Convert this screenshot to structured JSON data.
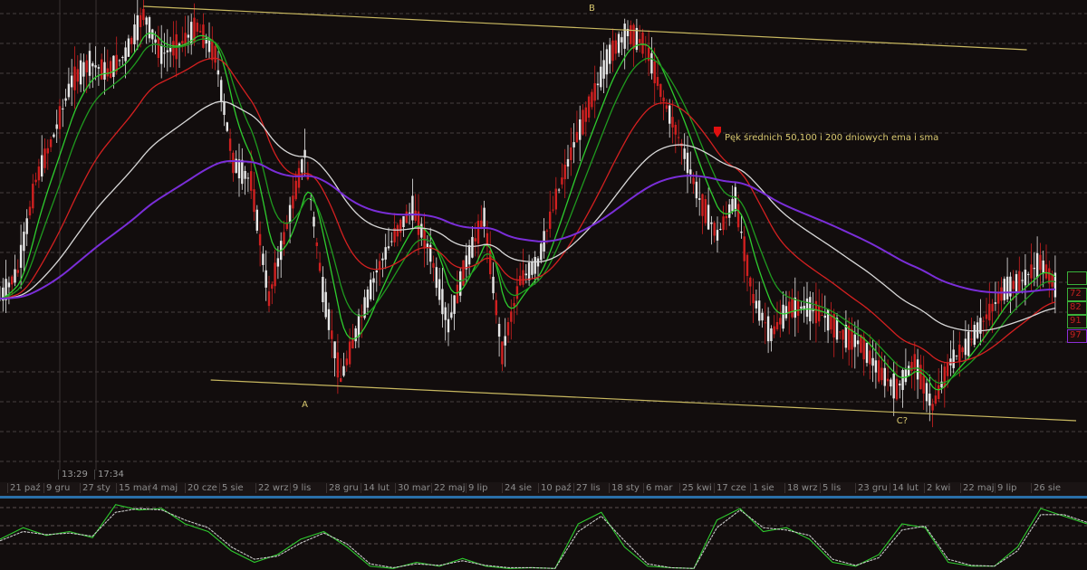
{
  "chart_data": {
    "type": "candlestick",
    "title": "",
    "xlabel": "",
    "ylabel": "",
    "grid": true,
    "price": [
      47.5,
      55,
      80,
      92.5,
      107.5,
      112.5,
      110,
      115,
      126,
      115,
      117.5,
      122.5,
      115,
      85,
      80,
      47.5,
      67.5,
      87.5,
      50,
      25,
      40,
      55,
      65,
      72.5,
      60,
      40,
      57.5,
      70,
      32.5,
      52.5,
      57.5,
      75,
      90,
      102.5,
      115,
      121,
      117.5,
      102.5,
      90,
      75,
      65,
      75,
      47.5,
      37.5,
      45,
      45,
      42.5,
      37.5,
      35,
      27.5,
      22.5,
      30,
      17.5,
      30,
      35,
      42.5,
      50,
      52.5,
      57.5,
      50
    ],
    "moving_averages": [
      {
        "kind": "ema",
        "period": 10,
        "color": "#2ecc2e"
      },
      {
        "kind": "ema",
        "period": 20,
        "color": "#1f9a1f"
      },
      {
        "kind": "ema",
        "period": 50,
        "color": "#d42020"
      },
      {
        "kind": "sma",
        "period": 100,
        "color": "#d8d8d8"
      },
      {
        "kind": "sma",
        "period": 200,
        "color": "#7a2ed8"
      }
    ],
    "trendlines": [
      {
        "from": [
          8,
          128.25
        ],
        "to": [
          57.25,
          116.25
        ],
        "color": "#c8b860"
      },
      {
        "from": [
          11.75,
          25
        ],
        "to": [
          60,
          13.75
        ],
        "color": "#c8b860"
      }
    ],
    "labels": [
      {
        "text": "A",
        "x": 17,
        "y": 17.5
      },
      {
        "text": "B",
        "x": 33,
        "y": 127
      },
      {
        "text": "C?",
        "x": 50.3,
        "y": 13
      }
    ],
    "annotation": {
      "text": "Pęk średnich 50,100 i 200 dniowych ema i sma",
      "x": 40,
      "y": 92,
      "marker_color": "#e01010"
    },
    "x_tick_labels": [
      "21 paź",
      "9 gru",
      "27 sty",
      "15 mar",
      "4 maj",
      "20 cze",
      "5 sie",
      "22 wrz",
      "9 lis",
      "28 gru",
      "14 lut",
      "30 mar",
      "22 maj",
      "9 lip",
      "24 sie",
      "10 paź",
      "27 lis",
      "18 sty",
      "6 mar",
      "25 kwi",
      "17 cze",
      "1 sie",
      "18 wrz",
      "5 lis",
      "23 gru",
      "14 lut",
      "2 kwi",
      "22 maj",
      "9 lip",
      "26 sie"
    ],
    "time_labels": [
      "13:29",
      "17:34"
    ],
    "right_badges": [
      {
        "text": "",
        "color": "#3ab03a"
      },
      {
        "text": "72",
        "color": "#3ab03a"
      },
      {
        "text": "82",
        "color": "#3ab03a"
      },
      {
        "text": "91",
        "color": "#3ab03a"
      },
      {
        "text": "97",
        "color": "#8a2ed8"
      }
    ],
    "oscillator": {
      "series": [
        {
          "values": [
            40,
            55,
            45,
            50,
            42,
            85,
            78,
            80,
            60,
            50,
            25,
            10,
            20,
            40,
            50,
            30,
            5,
            2,
            10,
            5,
            15,
            5,
            2,
            3,
            2,
            60,
            75,
            30,
            5,
            3,
            2,
            65,
            80,
            50,
            55,
            40,
            10,
            5,
            20,
            60,
            55,
            10,
            5,
            5,
            30,
            80,
            70,
            60
          ],
          "color": "#2ecc2e"
        },
        {
          "values": [
            38,
            50,
            46,
            48,
            44,
            75,
            80,
            78,
            65,
            55,
            30,
            14,
            18,
            35,
            48,
            34,
            8,
            3,
            8,
            6,
            12,
            6,
            3,
            3,
            2,
            50,
            70,
            38,
            8,
            3,
            2,
            55,
            78,
            55,
            52,
            45,
            14,
            6,
            16,
            52,
            57,
            14,
            6,
            5,
            25,
            72,
            72,
            62
          ],
          "color": "#c8c8c8"
        }
      ]
    }
  }
}
